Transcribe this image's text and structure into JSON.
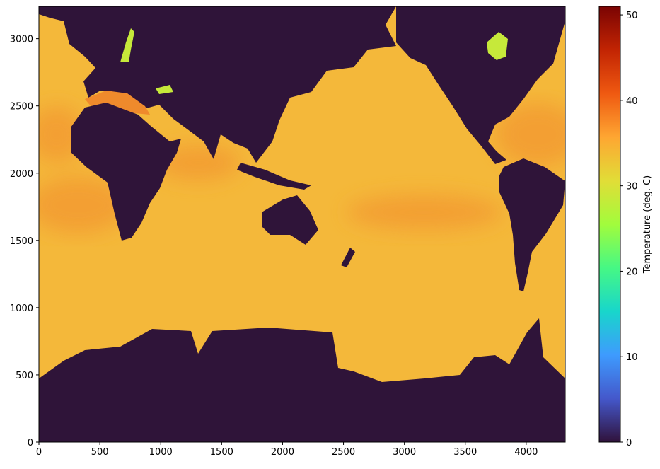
{
  "chart_data": {
    "type": "heatmap",
    "title": "",
    "xlabel": "",
    "ylabel": "",
    "xlim": [
      0,
      4320
    ],
    "ylim": [
      0,
      3240
    ],
    "xticks": [
      0,
      500,
      1000,
      1500,
      2000,
      2500,
      3000,
      3500,
      4000
    ],
    "yticks": [
      0,
      500,
      1000,
      1500,
      2000,
      2500,
      3000
    ],
    "colormap": "turbo",
    "clim": [
      0,
      51
    ],
    "colorbar": {
      "label": "Temperature (deg. C)",
      "ticks": [
        0,
        10,
        20,
        30,
        40,
        50
      ]
    },
    "typical_ocean_value": 34,
    "land_value": 0,
    "colors": {
      "land": "#2f1439",
      "ocean": "#f4b83a",
      "warm_band": "#f39a33",
      "marginal_sea": "#ef8a2c",
      "fresh_sea": "#c6e93a"
    }
  }
}
